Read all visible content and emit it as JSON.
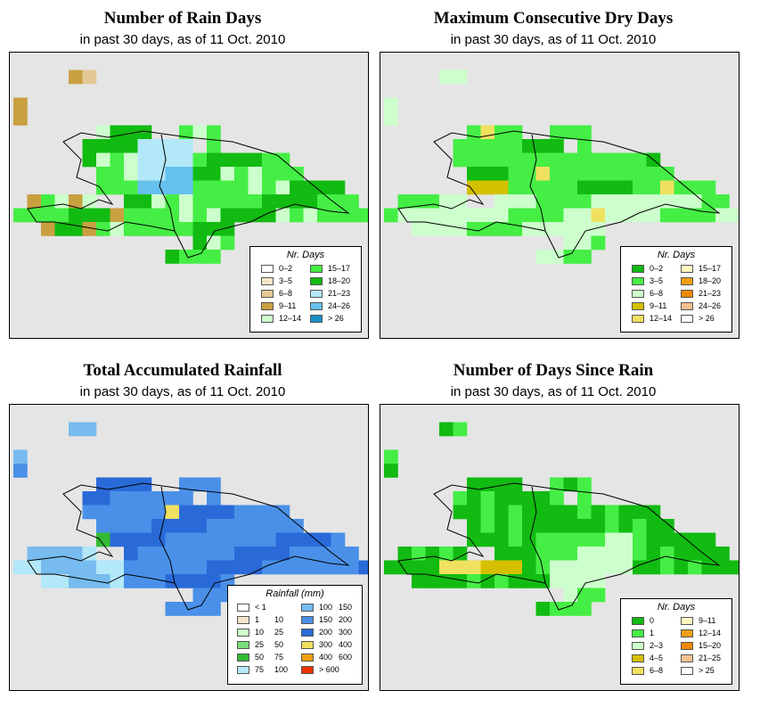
{
  "panels": [
    {
      "title": "Number of Rain Days",
      "subtitle": "in past 30 days, as of  11 Oct. 2010",
      "legend": {
        "title": "Nr. Days",
        "items": [
          {
            "label": "0–2",
            "color": "#ffffff"
          },
          {
            "label": "3–5",
            "color": "#f5e6c8"
          },
          {
            "label": "6–8",
            "color": "#e3c896"
          },
          {
            "label": "9–11",
            "color": "#c9a040"
          },
          {
            "label": "12–14",
            "color": "#ccffcc"
          },
          {
            "label": "15–17",
            "color": "#44ee44"
          },
          {
            "label": "18–20",
            "color": "#11bb11"
          },
          {
            "label": "21–23",
            "color": "#b3e8f8"
          },
          {
            "label": "24–26",
            "color": "#66c0ee"
          },
          {
            "label": "> 26",
            "color": "#1a8fc8"
          }
        ]
      }
    },
    {
      "title": "Maximum Consecutive Dry Days",
      "subtitle": "in past 30 days, as of  11 Oct. 2010",
      "legend": {
        "title": "Nr. Days",
        "items": [
          {
            "label": "0–2",
            "color": "#11bb11"
          },
          {
            "label": "3–5",
            "color": "#44ee44"
          },
          {
            "label": "6–8",
            "color": "#ccffcc"
          },
          {
            "label": "9–11",
            "color": "#d4c000"
          },
          {
            "label": "12–14",
            "color": "#f0e060"
          },
          {
            "label": "15–17",
            "color": "#fff8c0"
          },
          {
            "label": "18–20",
            "color": "#f0a010"
          },
          {
            "label": "21–23",
            "color": "#ee8800"
          },
          {
            "label": "24–26",
            "color": "#f8c090"
          },
          {
            "label": "> 26",
            "color": "#ffffff"
          }
        ]
      }
    },
    {
      "title": "Total Accumulated Rainfall",
      "subtitle": "in past 30 days, as of  11 Oct. 2010",
      "legend": {
        "title": "Rainfall (mm)",
        "items": [
          {
            "lo": "< 1",
            "hi": "",
            "color": "#ffffff"
          },
          {
            "lo": "1",
            "hi": "10",
            "color": "#f5e6c8"
          },
          {
            "lo": "10",
            "hi": "25",
            "color": "#ccffcc"
          },
          {
            "lo": "25",
            "hi": "50",
            "color": "#77dd77"
          },
          {
            "lo": "50",
            "hi": "75",
            "color": "#33bb33"
          },
          {
            "lo": "75",
            "hi": "100",
            "color": "#b3e8f8"
          },
          {
            "lo": "100",
            "hi": "150",
            "color": "#77bbf0"
          },
          {
            "lo": "150",
            "hi": "200",
            "color": "#4a90e8"
          },
          {
            "lo": "200",
            "hi": "300",
            "color": "#2a6ad8"
          },
          {
            "lo": "300",
            "hi": "400",
            "color": "#f0e060"
          },
          {
            "lo": "400",
            "hi": "600",
            "color": "#f0a010"
          },
          {
            "lo": "> 600",
            "hi": "",
            "color": "#ee3300"
          }
        ]
      }
    },
    {
      "title": "Number of Days Since Rain",
      "subtitle": "in past 30 days, as of  11 Oct. 2010",
      "legend": {
        "title": "Nr. Days",
        "items": [
          {
            "label": "0",
            "color": "#11bb11"
          },
          {
            "label": "1",
            "color": "#44ee44"
          },
          {
            "label": "2–3",
            "color": "#ccffcc"
          },
          {
            "label": "4–5",
            "color": "#d4c000"
          },
          {
            "label": "6–8",
            "color": "#f0e060"
          },
          {
            "label": "9–11",
            "color": "#fff8c0"
          },
          {
            "label": "12–14",
            "color": "#f0a010"
          },
          {
            "label": "15–20",
            "color": "#ee8800"
          },
          {
            "label": "21–25",
            "color": "#f8c090"
          },
          {
            "label": "> 25",
            "color": "#ffffff"
          }
        ]
      }
    }
  ]
}
